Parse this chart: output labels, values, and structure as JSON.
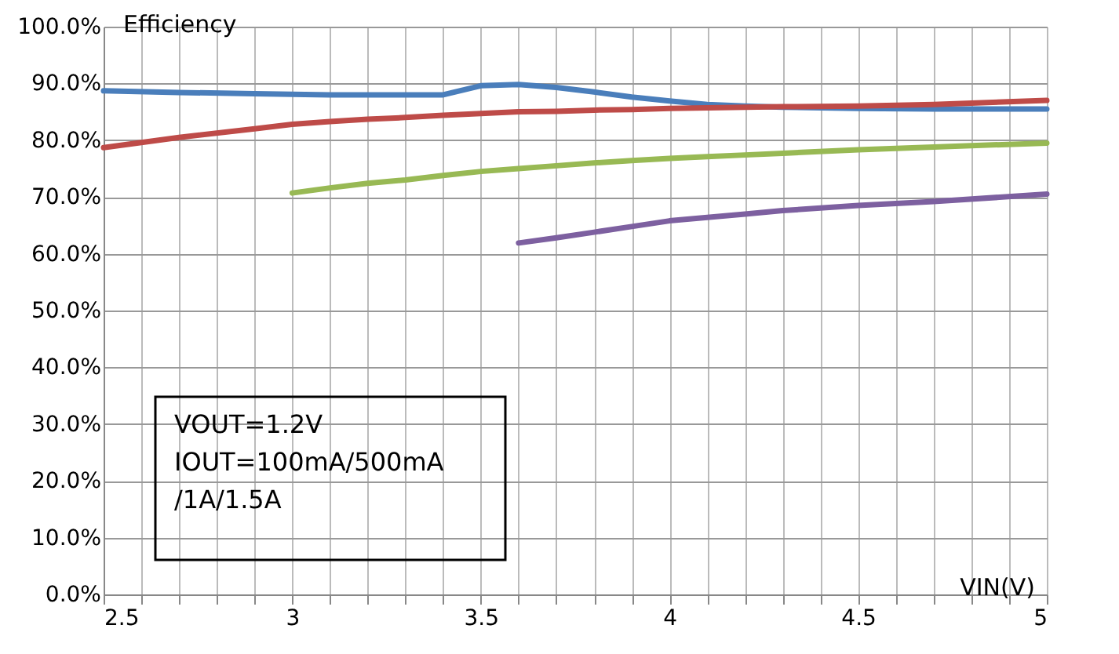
{
  "chart_data": {
    "type": "line",
    "xlabel": "VIN(V)",
    "ylabel": "Efficiency",
    "x": [
      2.5,
      2.7,
      2.9,
      3.0,
      3.1,
      3.2,
      3.3,
      3.4,
      3.5,
      3.6,
      3.7,
      3.8,
      3.9,
      4.0,
      4.1,
      4.2,
      4.3,
      4.5,
      4.7,
      5.0
    ],
    "series": [
      {
        "color": "#4a7ebb",
        "values": [
          88.7,
          88.4,
          88.2,
          88.1,
          88.0,
          88.0,
          88.0,
          88.0,
          89.6,
          89.8,
          89.3,
          88.5,
          87.6,
          86.9,
          86.3,
          86.0,
          85.8,
          85.6,
          85.5,
          85.5
        ]
      },
      {
        "color": "#be4b48",
        "values": [
          78.7,
          80.5,
          82.0,
          82.8,
          83.3,
          83.7,
          84.0,
          84.4,
          84.7,
          85.0,
          85.1,
          85.3,
          85.4,
          85.6,
          85.7,
          85.8,
          85.9,
          86.0,
          86.3,
          87.0
        ]
      },
      {
        "color": "#98b954",
        "values": [
          null,
          null,
          null,
          70.7,
          71.6,
          72.4,
          73.0,
          73.8,
          74.5,
          75.0,
          75.5,
          76.0,
          76.4,
          76.8,
          77.1,
          77.4,
          77.7,
          78.3,
          78.8,
          79.5
        ]
      },
      {
        "color": "#7d60a0",
        "values": [
          null,
          null,
          null,
          null,
          null,
          null,
          null,
          null,
          null,
          61.9,
          62.8,
          63.8,
          64.8,
          65.8,
          66.4,
          67.0,
          67.6,
          68.5,
          69.2,
          70.5
        ]
      }
    ],
    "xlim": [
      2.5,
      5
    ],
    "ylim": [
      0,
      100
    ],
    "xticks": [
      2.5,
      {
        "value": 2.6,
        "label": null
      },
      {
        "value": 2.7,
        "label": null
      },
      {
        "value": 2.8,
        "label": null
      },
      {
        "value": 2.9,
        "label": null
      },
      3,
      {
        "value": 3.1,
        "label": null
      },
      {
        "value": 3.2,
        "label": null
      },
      {
        "value": 3.3,
        "label": null
      },
      {
        "value": 3.4,
        "label": null
      },
      3.5,
      {
        "value": 3.6,
        "label": null
      },
      {
        "value": 3.7,
        "label": null
      },
      {
        "value": 3.8,
        "label": null
      },
      {
        "value": 3.9,
        "label": null
      },
      4,
      {
        "value": 4.1,
        "label": null
      },
      {
        "value": 4.2,
        "label": null
      },
      {
        "value": 4.3,
        "label": null
      },
      {
        "value": 4.4,
        "label": null
      },
      4.5,
      {
        "value": 4.6,
        "label": null
      },
      {
        "value": 4.7,
        "label": null
      },
      {
        "value": 4.8,
        "label": null
      },
      {
        "value": 4.9,
        "label": null
      },
      5
    ],
    "yticks": [
      {
        "value": 0,
        "label": "0.0%"
      },
      {
        "value": 10,
        "label": "10.0%"
      },
      {
        "value": 20,
        "label": "20.0%"
      },
      {
        "value": 30,
        "label": "30.0%"
      },
      {
        "value": 40,
        "label": "40.0%"
      },
      {
        "value": 50,
        "label": "50.0%"
      },
      {
        "value": 60,
        "label": "60.0%"
      },
      {
        "value": 70,
        "label": "70.0%"
      },
      {
        "value": 80,
        "label": "80.0%"
      },
      {
        "value": 90,
        "label": "90.0%"
      },
      {
        "value": 100,
        "label": "100.0%"
      }
    ],
    "annotations": [
      "VOUT=1.2V\nIOUT=100mA/500mA\n/1A/1.5A"
    ],
    "grid": true,
    "legend": false,
    "marker": "none",
    "line_style": "solid"
  }
}
